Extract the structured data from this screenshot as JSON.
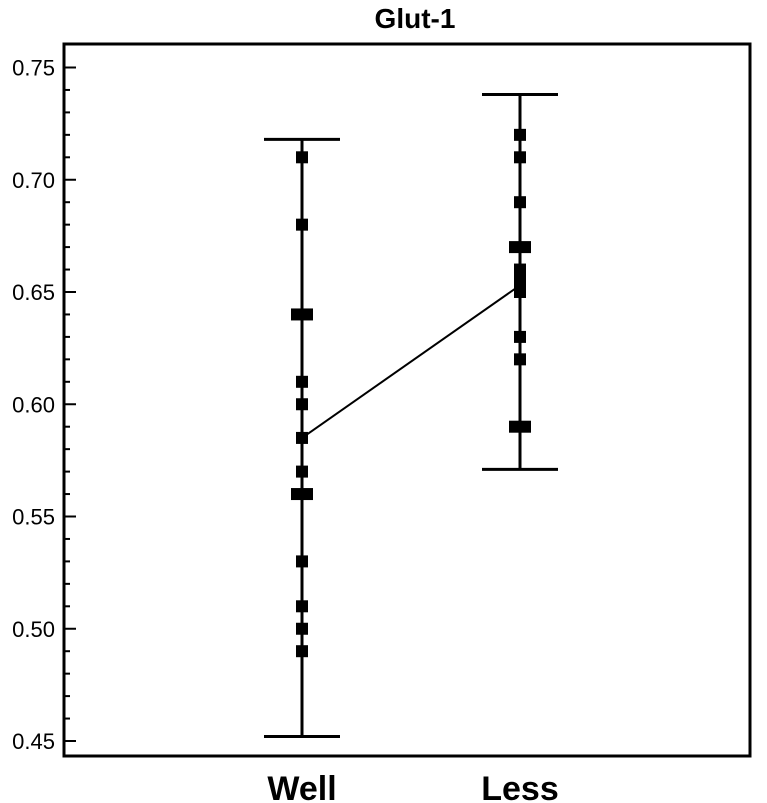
{
  "chart_data": {
    "type": "scatter",
    "title": "Glut-1",
    "xlabel": "",
    "ylabel": "",
    "categories": [
      "Well",
      "Less"
    ],
    "ylim": [
      0.45,
      0.755
    ],
    "yticks": [
      0.45,
      0.5,
      0.55,
      0.6,
      0.65,
      0.7,
      0.75
    ],
    "ytick_labels": [
      "0.45",
      "0.50",
      "0.55",
      "0.60",
      "0.65",
      "0.70",
      "0.75"
    ],
    "grid": false,
    "legend": "none",
    "colors": {
      "mark": "#000000",
      "background": "#ffffff"
    },
    "groups": [
      {
        "category": "Well",
        "points": [
          0.71,
          0.68,
          0.64,
          0.64,
          0.61,
          0.6,
          0.585,
          0.57,
          0.56,
          0.56,
          0.53,
          0.51,
          0.5,
          0.49
        ],
        "mean": 0.585,
        "upper": 0.718,
        "lower": 0.452
      },
      {
        "category": "Less",
        "points": [
          0.72,
          0.71,
          0.69,
          0.67,
          0.67,
          0.66,
          0.655,
          0.65,
          0.63,
          0.62,
          0.59,
          0.59
        ],
        "mean": 0.653,
        "upper": 0.738,
        "lower": 0.571
      }
    ]
  }
}
